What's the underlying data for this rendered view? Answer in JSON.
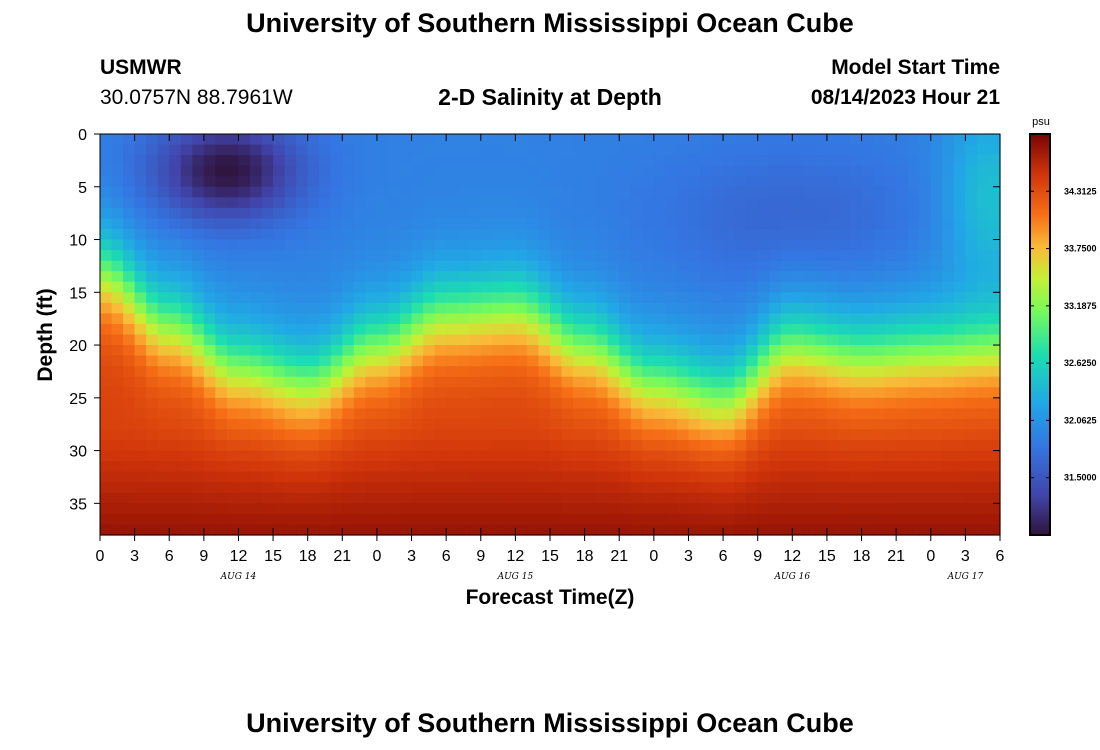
{
  "header": {
    "title": "University of Southern Mississippi Ocean Cube",
    "station": "USMWR",
    "coordinates": "30.0757N  88.7961W",
    "plot_title": "2-D Salinity at Depth",
    "model_label": "Model Start Time",
    "model_time": "08/14/2023 Hour 21"
  },
  "footer": {
    "title": "University of Southern Mississippi Ocean Cube"
  },
  "chart_data": {
    "type": "heatmap",
    "title": "2-D Salinity at Depth",
    "xlabel": "Forecast Time(Z)",
    "ylabel": "Depth (ft)",
    "x_ticks": [
      "0",
      "3",
      "6",
      "9",
      "12",
      "15",
      "18",
      "21",
      "0",
      "3",
      "6",
      "9",
      "12",
      "15",
      "18",
      "21",
      "0",
      "3",
      "6",
      "9",
      "12",
      "15",
      "18",
      "21",
      "0",
      "3",
      "6"
    ],
    "date_labels": [
      {
        "label": "AUG 14",
        "hour": 12
      },
      {
        "label": "AUG 15",
        "hour": 36
      },
      {
        "label": "AUG 16",
        "hour": 60
      },
      {
        "label": "AUG 17",
        "hour": 75
      }
    ],
    "xlim": [
      0,
      78
    ],
    "y_ticks": [
      0,
      5,
      10,
      15,
      20,
      25,
      30,
      35
    ],
    "ylim": [
      0,
      38
    ],
    "colorbar": {
      "unit": "psu",
      "ticks": [
        "34.3125",
        "33.7500",
        "33.1875",
        "32.6250",
        "32.0625",
        "31.5000"
      ],
      "min": 30.9375,
      "max": 34.875
    },
    "salinity_model": {
      "description": "halocline depth (ft) vs forecast hour; fresh surface layer above, saline bottom layer below",
      "halocline_hours": [
        0,
        6,
        12,
        18,
        24,
        30,
        36,
        42,
        48,
        54,
        60,
        66,
        72,
        78
      ],
      "halocline_depths": [
        13,
        18,
        22,
        23.5,
        20,
        17,
        16.5,
        20,
        23.5,
        25,
        20,
        21,
        20.5,
        20
      ],
      "surface_salinity": 31.9,
      "bottom_salinity": 34.4,
      "fresh_core": {
        "hour": 11,
        "depth": 3.5,
        "value": 30.95
      }
    }
  }
}
